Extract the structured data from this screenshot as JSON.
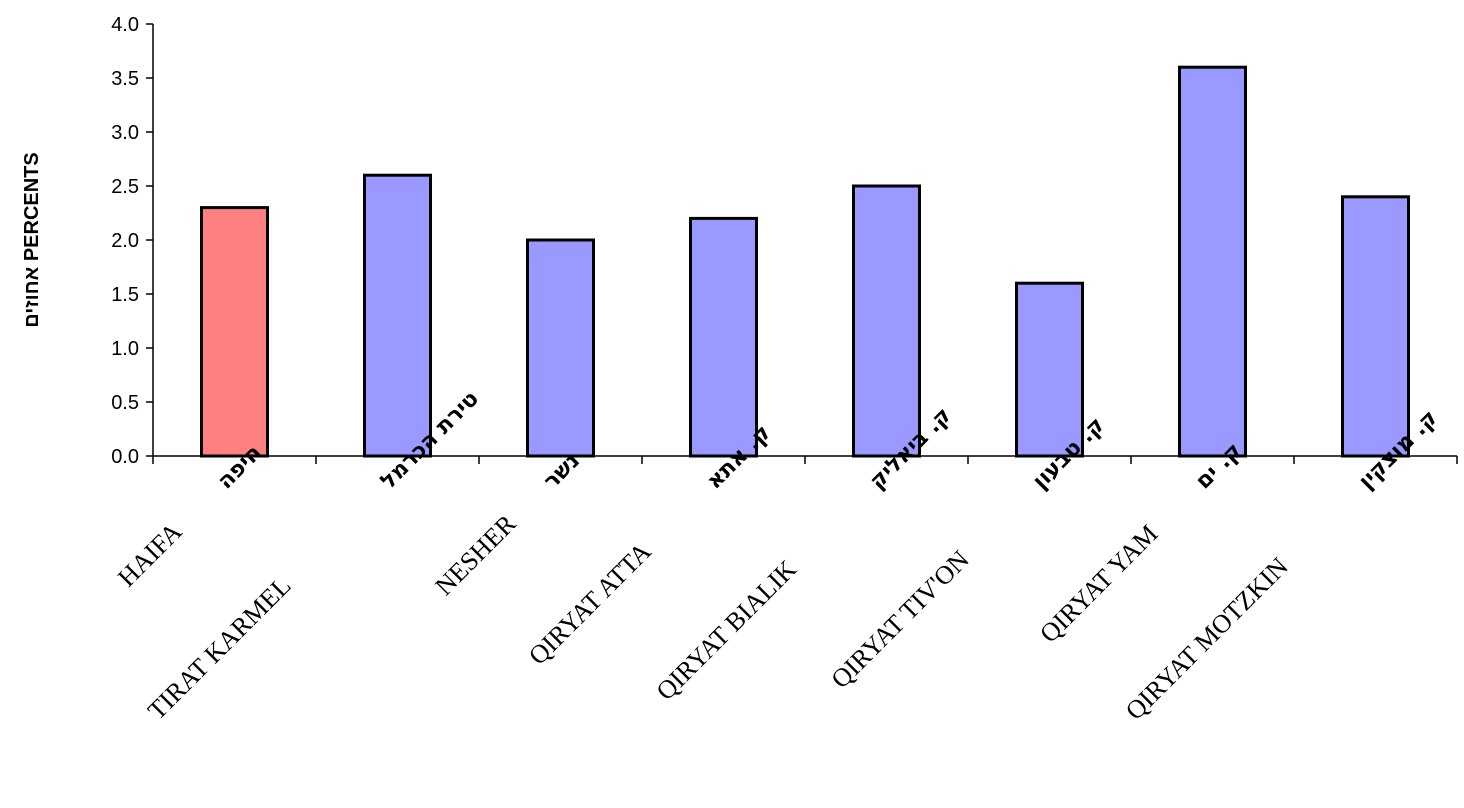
{
  "chart_data": {
    "type": "bar",
    "ylabel": "אחוזים PERCENTS",
    "ylim": [
      0,
      4.0
    ],
    "yticks": [
      "0.0",
      "0.5",
      "1.0",
      "1.5",
      "2.0",
      "2.5",
      "3.0",
      "3.5",
      "4.0"
    ],
    "categories": [
      {
        "en": "HAIFA",
        "he": "חיפה"
      },
      {
        "en": "TIRAT KARMEL",
        "he": "טירת הכרמל"
      },
      {
        "en": "NESHER",
        "he": "נשר"
      },
      {
        "en": "QIRYAT ATTA",
        "he": "ק. אתא"
      },
      {
        "en": "QIRYAT BIALIK",
        "he": "ק. ביאליק"
      },
      {
        "en": "QIRYAT TIV'ON",
        "he": "ק. טבעון"
      },
      {
        "en": "QIRYAT YAM",
        "he": "ק. ים"
      },
      {
        "en": "QIRYAT MOTZKIN",
        "he": "ק. מוצקין"
      }
    ],
    "values": [
      2.3,
      2.6,
      2.0,
      2.2,
      2.5,
      1.6,
      3.6,
      2.4
    ],
    "colors": [
      "#ff8080",
      "#9999ff",
      "#9999ff",
      "#9999ff",
      "#9999ff",
      "#9999ff",
      "#9999ff",
      "#9999ff"
    ],
    "bar_stroke": "#000000",
    "grid": false
  }
}
